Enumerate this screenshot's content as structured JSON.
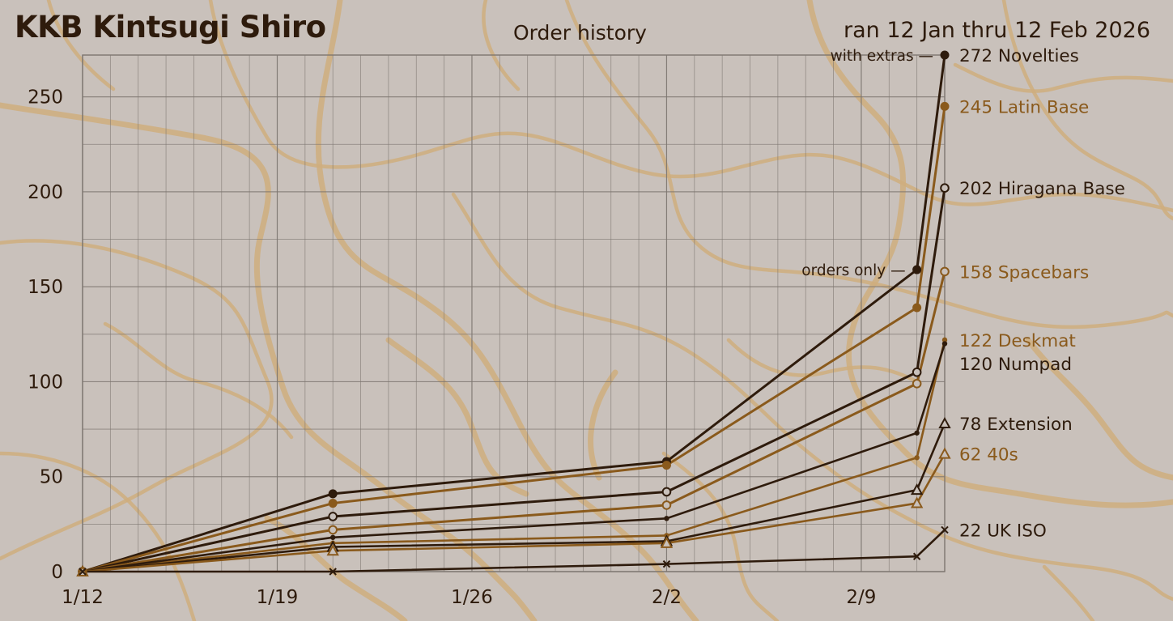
{
  "header": {
    "brand": "KKB Kintsugi  Shiro",
    "subtitle": "Order history",
    "date_range": "ran 12 Jan thru 12 Feb 2026"
  },
  "colors": {
    "background": "#c9c1bb",
    "cracks": "#cfae7e",
    "dark_series": "#2e1b0c",
    "gold_series": "#8a5a1c",
    "grid": "#7d7670"
  },
  "chart_data": {
    "type": "line",
    "title": "Order history",
    "x_axis": {
      "type": "date",
      "range": [
        "2026-01-12",
        "2026-02-12"
      ],
      "tick_labels": [
        "1/12",
        "1/19",
        "1/26",
        "2/2",
        "2/9"
      ],
      "tick_values": [
        "2026-01-12",
        "2026-01-19",
        "2026-01-26",
        "2026-02-02",
        "2026-02-09"
      ]
    },
    "y_axis": {
      "range": [
        0,
        272
      ],
      "tick_values": [
        0,
        50,
        100,
        150,
        200,
        250
      ]
    },
    "grid": true,
    "x": [
      "2026-01-12",
      "2026-01-21",
      "2026-02-02",
      "2026-02-11",
      "2026-02-12"
    ],
    "series": [
      {
        "name": "Novelties",
        "end_label": "272 Novelties",
        "color": "#2e1b0c",
        "marker": "filled-circle",
        "values": [
          0,
          41,
          58,
          159,
          272
        ]
      },
      {
        "name": "Latin Base",
        "end_label": "245 Latin Base",
        "color": "#8a5a1c",
        "marker": "filled-circle",
        "values": [
          0,
          36,
          56,
          139,
          245
        ]
      },
      {
        "name": "Hiragana Base",
        "end_label": "202 Hiragana Base",
        "color": "#2e1b0c",
        "marker": "open-circle",
        "values": [
          0,
          29,
          42,
          105,
          202
        ]
      },
      {
        "name": "Spacebars",
        "end_label": "158 Spacebars",
        "color": "#8a5a1c",
        "marker": "open-circle",
        "values": [
          0,
          22,
          35,
          99,
          158
        ]
      },
      {
        "name": "Deskmat",
        "end_label": "122 Deskmat",
        "color": "#8a5a1c",
        "marker": "small-dot",
        "values": [
          0,
          15,
          19,
          60,
          122
        ]
      },
      {
        "name": "Numpad",
        "end_label": "120 Numpad",
        "color": "#2e1b0c",
        "marker": "small-dot",
        "values": [
          0,
          18,
          28,
          73,
          120
        ]
      },
      {
        "name": "Extension",
        "end_label": "78 Extension",
        "color": "#2e1b0c",
        "marker": "open-triangle",
        "values": [
          0,
          13,
          16,
          43,
          78
        ]
      },
      {
        "name": "40s",
        "end_label": "62 40s",
        "color": "#8a5a1c",
        "marker": "open-triangle",
        "values": [
          0,
          11,
          15,
          36,
          62
        ]
      },
      {
        "name": "UK ISO",
        "end_label": "22 UK ISO",
        "color": "#2e1b0c",
        "marker": "cross",
        "values": [
          0,
          0,
          4,
          8,
          22
        ]
      }
    ],
    "annotations": [
      {
        "text": "with extras —",
        "series": "Novelties",
        "x": "2026-02-12",
        "y": 272
      },
      {
        "text": "orders only —",
        "series": "Novelties",
        "x": "2026-02-11",
        "y": 159
      }
    ]
  }
}
